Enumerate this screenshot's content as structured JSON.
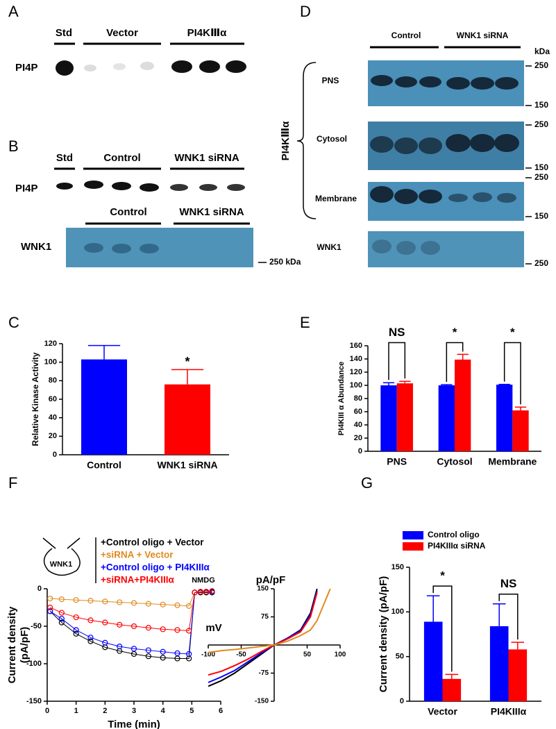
{
  "panels": {
    "letters": [
      "A",
      "B",
      "C",
      "D",
      "E",
      "F",
      "G"
    ],
    "A": {
      "std": "Std",
      "vector": "Vector",
      "pi4k": "PI4KⅢα",
      "row": "PI4P"
    },
    "B": {
      "std": "Std",
      "control": "Control",
      "siRNA": "WNK1 siRNA",
      "row": "PI4P",
      "control2": "Control",
      "siRNA2": "WNK1 siRNA",
      "row2": "WNK1",
      "marker": "250 kDa"
    },
    "D": {
      "control": "Control",
      "siRNA": "WNK1 siRNA",
      "unit": "kDa",
      "rows": [
        "PNS",
        "Cytosol",
        "Membrane",
        "WNK1"
      ],
      "group": "PI4KⅢα",
      "markers": [
        250,
        150,
        250,
        150,
        250,
        150,
        250
      ]
    },
    "F": {
      "diagram": "WNK1"
    }
  },
  "chart_data": [
    {
      "type": "bar",
      "ylabel": "Relative Kinase Activity",
      "categories": [
        "Control",
        "WNK1 siRNA"
      ],
      "values": [
        103,
        76
      ],
      "errors": [
        15,
        16
      ],
      "colors": [
        "#0000ff",
        "#ff0000"
      ],
      "ylim": [
        0,
        120
      ],
      "yticks": [
        0,
        20,
        40,
        60,
        80,
        100,
        120
      ],
      "annotations": [
        "*"
      ]
    },
    {
      "type": "bar",
      "ylabel": "PI4KIII α Abundance",
      "categories": [
        "PNS",
        "Cytosol",
        "Membrane"
      ],
      "series": [
        {
          "color": "#0000ff",
          "values": [
            100,
            100,
            101
          ],
          "errors": [
            4,
            1,
            0.5
          ]
        },
        {
          "color": "#ff0000",
          "values": [
            103,
            139,
            62
          ],
          "errors": [
            3,
            8,
            5
          ]
        }
      ],
      "ylim": [
        0,
        160
      ],
      "yticks": [
        0,
        20,
        40,
        60,
        80,
        100,
        120,
        140,
        160
      ],
      "annotations": [
        "NS",
        "*",
        "*"
      ],
      "brackets": true
    },
    {
      "type": "line",
      "xlabel": "Time (min)",
      "ylabel": [
        "Current density",
        "(pA/pF)"
      ],
      "x": [
        0.1,
        0.5,
        1,
        1.5,
        2,
        2.5,
        3,
        3.5,
        4,
        4.5,
        4.9,
        5.1,
        5.3,
        5.5,
        5.7
      ],
      "series": [
        {
          "name": "+Control oligo + Vector",
          "color": "#000000",
          "values": [
            -30,
            -45,
            -60,
            -70,
            -78,
            -83,
            -87,
            -90,
            -92,
            -93,
            -93,
            -5,
            -5,
            -5,
            -5
          ]
        },
        {
          "name": "+siRNA + Vector",
          "color": "#e08a1e",
          "values": [
            -13,
            -14,
            -15,
            -16,
            -17,
            -18,
            -19,
            -20,
            -21,
            -22,
            -23,
            -5,
            -4,
            -4,
            -4
          ]
        },
        {
          "name": "+Control oligo + PI4KIIIα",
          "color": "#0000ff",
          "values": [
            -30,
            -40,
            -55,
            -65,
            -72,
            -77,
            -80,
            -82,
            -84,
            -86,
            -87,
            -5,
            -4,
            -4,
            -4
          ]
        },
        {
          "name": "+siRNA+PI4KIIIα",
          "color": "#ff0000",
          "values": [
            -25,
            -32,
            -38,
            -42,
            -45,
            -48,
            -50,
            -52,
            -54,
            -55,
            -56,
            -5,
            -4,
            -4,
            -3
          ]
        }
      ],
      "xlim": [
        0,
        6
      ],
      "xticks": [
        0,
        1,
        2,
        3,
        4,
        5,
        6
      ],
      "ylim": [
        -150,
        0
      ],
      "yticks": [
        0,
        -50,
        -100,
        -150
      ],
      "markers": true,
      "annotations": [
        "NMDG"
      ]
    },
    {
      "type": "line",
      "xlabel": "mV",
      "ylabel": "pA/pF",
      "x": [
        -100,
        -80,
        -60,
        -40,
        -20,
        0,
        20,
        40,
        55,
        65,
        85
      ],
      "series": [
        {
          "color": "#000000",
          "values": [
            -110,
            -95,
            -75,
            -50,
            -25,
            0,
            18,
            40,
            85,
            150,
            null
          ]
        },
        {
          "color": "#0000ff",
          "values": [
            -100,
            -85,
            -68,
            -45,
            -22,
            0,
            18,
            38,
            80,
            145,
            null
          ]
        },
        {
          "color": "#ff0000",
          "values": [
            -80,
            -70,
            -55,
            -38,
            -18,
            0,
            16,
            35,
            75,
            140,
            null
          ]
        },
        {
          "color": "#e08a1e",
          "values": [
            -20,
            -15,
            -12,
            -8,
            -4,
            0,
            10,
            25,
            40,
            65,
            150
          ]
        }
      ],
      "xlim": [
        -100,
        100
      ],
      "xticks": [
        -100,
        -50,
        50,
        100
      ],
      "ylim": [
        -150,
        150
      ],
      "yticks": [
        -150,
        -75,
        75,
        150
      ],
      "axes_at_zero": true
    },
    {
      "type": "bar",
      "ylabel": "Current density (pA/pF)",
      "categories": [
        "Vector",
        "PI4KIIIα"
      ],
      "series": [
        {
          "name": "Control oligo",
          "color": "#0000ff",
          "values": [
            89,
            84
          ],
          "errors": [
            29,
            25
          ]
        },
        {
          "name": "PI4KIIIα siRNA",
          "color": "#ff0000",
          "values": [
            25,
            58
          ],
          "errors": [
            5,
            8
          ]
        }
      ],
      "ylim": [
        0,
        150
      ],
      "yticks": [
        0,
        50,
        100,
        150
      ],
      "annotations": [
        "*",
        "NS"
      ],
      "brackets": true,
      "legend": "top-left"
    }
  ]
}
